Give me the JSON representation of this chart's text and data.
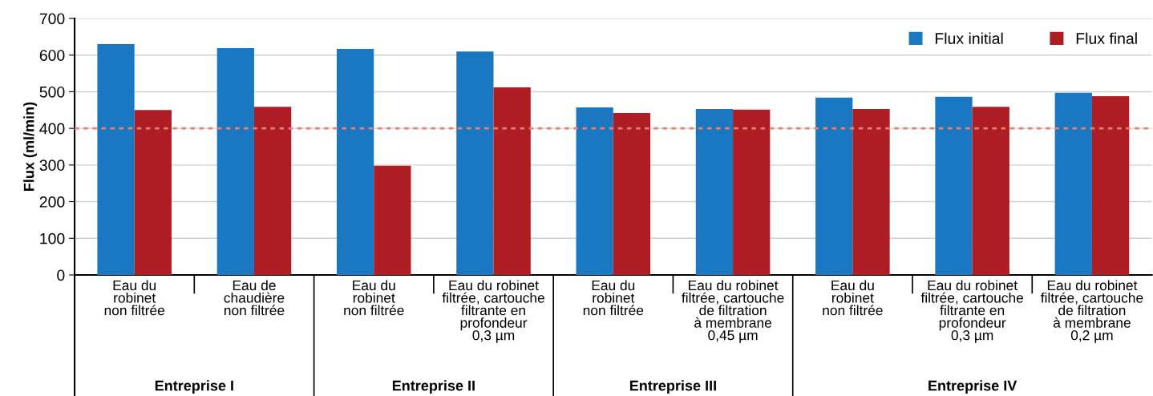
{
  "chart_data": {
    "type": "bar",
    "ylabel": "Flux (ml/min)",
    "categories": [
      "Eau du\nrobinet\nnon filtrée",
      "Eau de\nchaudière\nnon filtrée",
      "Eau du\nrobinet\nnon filtrée",
      "Eau du robinet\nfiltrée, cartouche\nfiltrante en\nprofondeur\n0,3 µm",
      "Eau du\nrobinet\nnon filtrée",
      "Eau du robinet\nfiltrée, cartouche\nde filtration\nà membrane\n0,45 µm",
      "Eau du\nrobinet\nnon filtrée",
      "Eau du robinet\nfiltrée, cartouche\nfiltrante en\nprofondeur\n0,3 µm",
      "Eau du robinet\nfiltrée, cartouche\nde filtration\nà membrane\n0,2 µm"
    ],
    "series": [
      {
        "name": "Flux initial",
        "color": "#1a78c2",
        "values": [
          630,
          619,
          617,
          610,
          457,
          453,
          484,
          486,
          497
        ]
      },
      {
        "name": "Flux final",
        "color": "#ae1c24",
        "values": [
          450,
          459,
          298,
          512,
          442,
          451,
          453,
          459,
          488
        ]
      }
    ],
    "ylim": [
      0,
      700
    ],
    "yticks": [
      0,
      100,
      200,
      300,
      400,
      500,
      600,
      700
    ],
    "grid": "y",
    "legend": "top right",
    "ref_lines": [
      {
        "axis": "y",
        "value": 400,
        "color": "#e8806e",
        "line_style": "dotted"
      }
    ],
    "annotations": [
      "Entreprise I",
      "Entreprise II",
      "Entreprise III",
      "Entreprise IV"
    ]
  }
}
